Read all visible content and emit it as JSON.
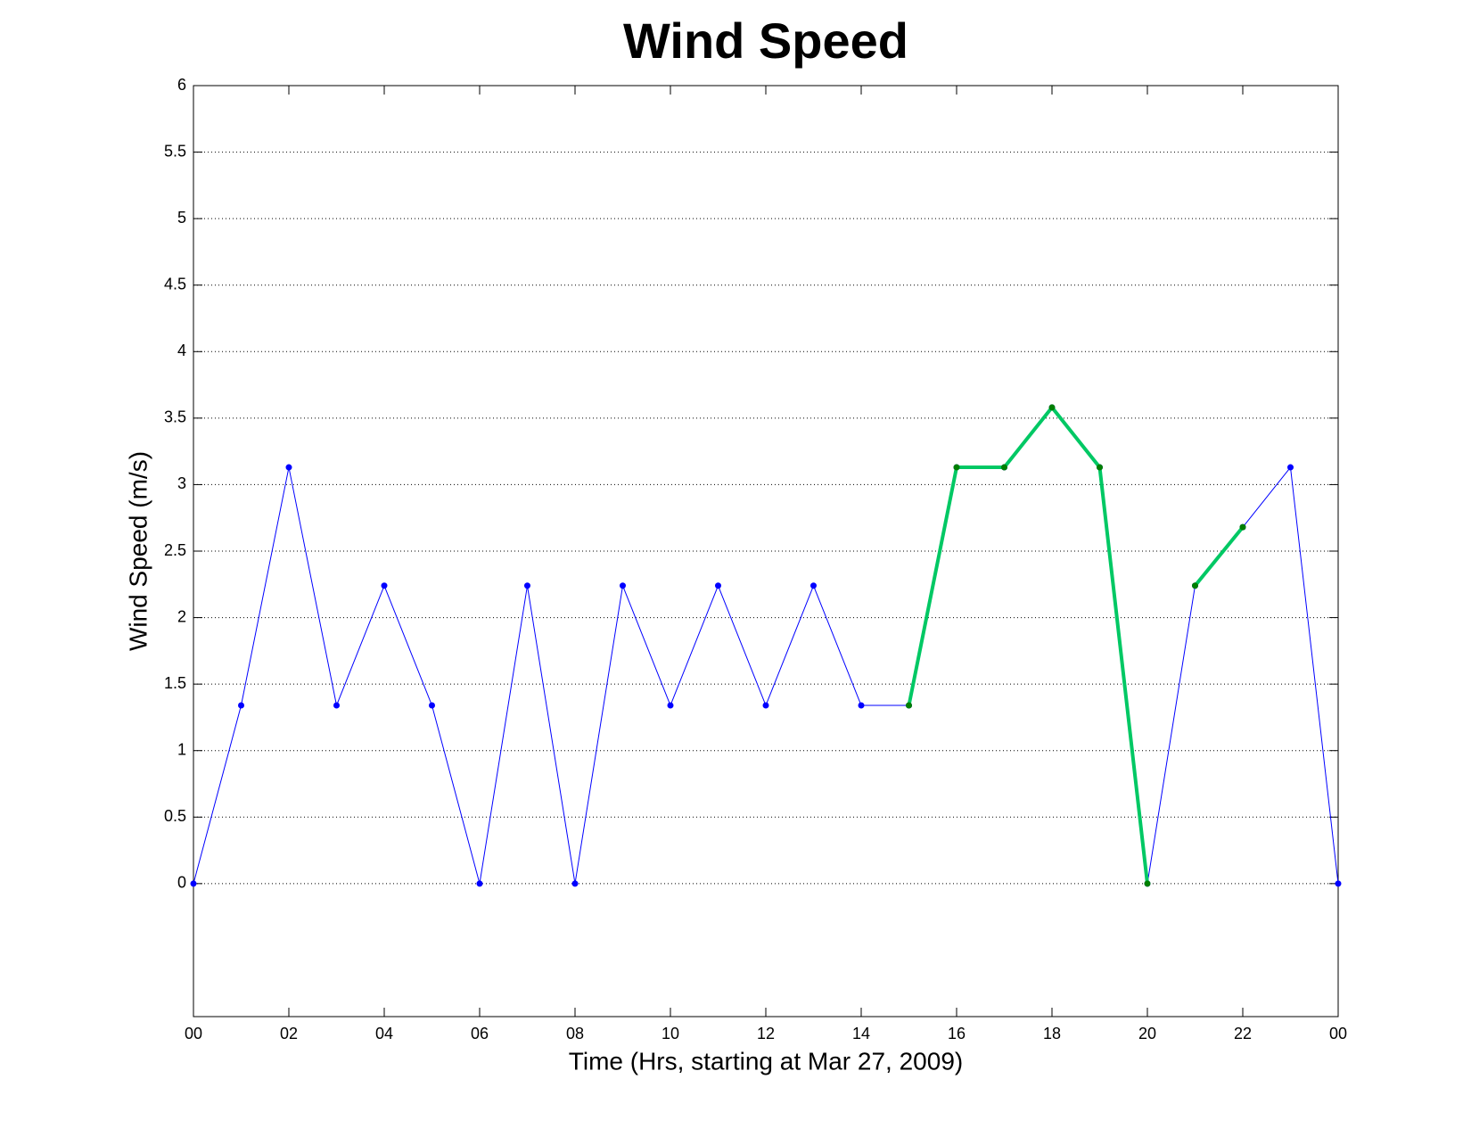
{
  "chart_data": {
    "type": "line",
    "title": "Wind Speed",
    "x_label": "Time (Hrs, starting at Mar 27, 2009)",
    "y_label": "Wind Speed (m/s)",
    "xlim": [
      0,
      24
    ],
    "ylim": [
      -1,
      6
    ],
    "xticks": [
      {
        "value": 0,
        "label": "00"
      },
      {
        "value": 2,
        "label": "02"
      },
      {
        "value": 4,
        "label": "04"
      },
      {
        "value": 6,
        "label": "06"
      },
      {
        "value": 8,
        "label": "08"
      },
      10,
      12,
      14,
      16,
      18,
      20,
      22,
      {
        "value": 24,
        "label": "00"
      }
    ],
    "yticks": [
      0,
      0.5,
      1,
      1.5,
      2,
      2.5,
      3,
      3.5,
      4,
      4.5,
      5,
      5.5,
      6
    ],
    "grid": true,
    "series": [
      {
        "color": "#0000ff",
        "marker_color": "#0000ff",
        "line_width": 1,
        "x": [
          0,
          1,
          2,
          3,
          4,
          5,
          6,
          7,
          8,
          9,
          10,
          11,
          12,
          13,
          14,
          15,
          16,
          17,
          18,
          19,
          20,
          21,
          22,
          23,
          24
        ],
        "values": [
          0,
          1.34,
          3.13,
          1.34,
          2.24,
          1.34,
          0,
          2.24,
          0,
          2.24,
          1.34,
          2.24,
          1.34,
          2.24,
          1.34,
          1.34,
          3.13,
          3.13,
          3.58,
          3.13,
          0,
          2.24,
          2.68,
          3.13,
          0
        ]
      },
      {
        "color": "#00c864",
        "marker_color": "#007f00",
        "line_width": 4,
        "x": [
          15,
          16,
          17,
          18,
          19,
          20,
          null,
          21,
          22
        ],
        "values": [
          1.34,
          3.13,
          3.13,
          3.58,
          3.13,
          0,
          null,
          2.24,
          2.68
        ]
      }
    ]
  }
}
